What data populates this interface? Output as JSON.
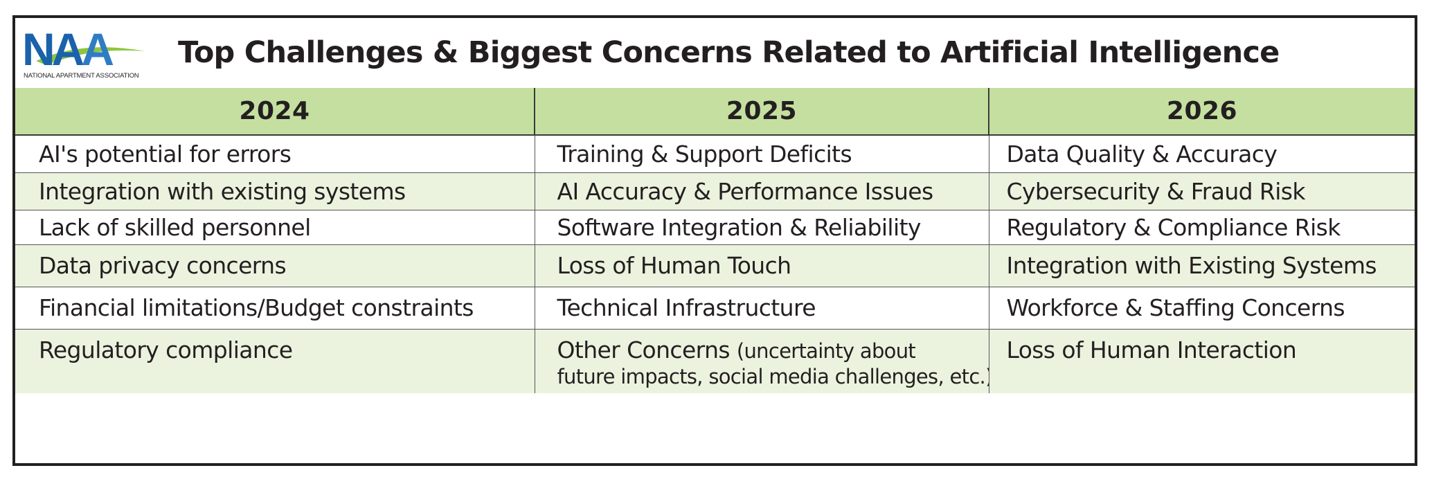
{
  "logo": {
    "letters": [
      "N",
      "A",
      "A"
    ],
    "subtitle": "NATIONAL APARTMENT ASSOCIATION",
    "colors": {
      "primary": "#1a62ab",
      "swoosh": "#8dc63f"
    }
  },
  "title": "Top Challenges & Biggest Concerns Related to Artificial Intelligence",
  "colors": {
    "header_band": "#c5dfa0",
    "alt_row": "#ebf3df",
    "text": "#231f20",
    "border": "#231f20"
  },
  "table": {
    "columns": [
      "2024",
      "2025",
      "2026"
    ],
    "rows": [
      [
        "AI's potential for errors",
        "Training & Support Deficits",
        "Data Quality & Accuracy"
      ],
      [
        "Integration with existing systems",
        "AI Accuracy & Performance Issues",
        "Cybersecurity & Fraud Risk"
      ],
      [
        "Lack of skilled personnel",
        "Software Integration & Reliability",
        "Regulatory & Compliance Risk"
      ],
      [
        "Data privacy concerns",
        "Loss of Human Touch",
        "Integration with Existing Systems"
      ],
      [
        "Financial limitations/Budget constraints",
        "Technical Infrastructure",
        "Workforce & Staffing Concerns"
      ],
      [
        "Regulatory compliance",
        "Other Concerns",
        "Loss of Human Interaction"
      ]
    ],
    "last_row_note": {
      "line1": "(uncertainty about",
      "line2": "future impacts, social media challenges, etc.)"
    }
  }
}
